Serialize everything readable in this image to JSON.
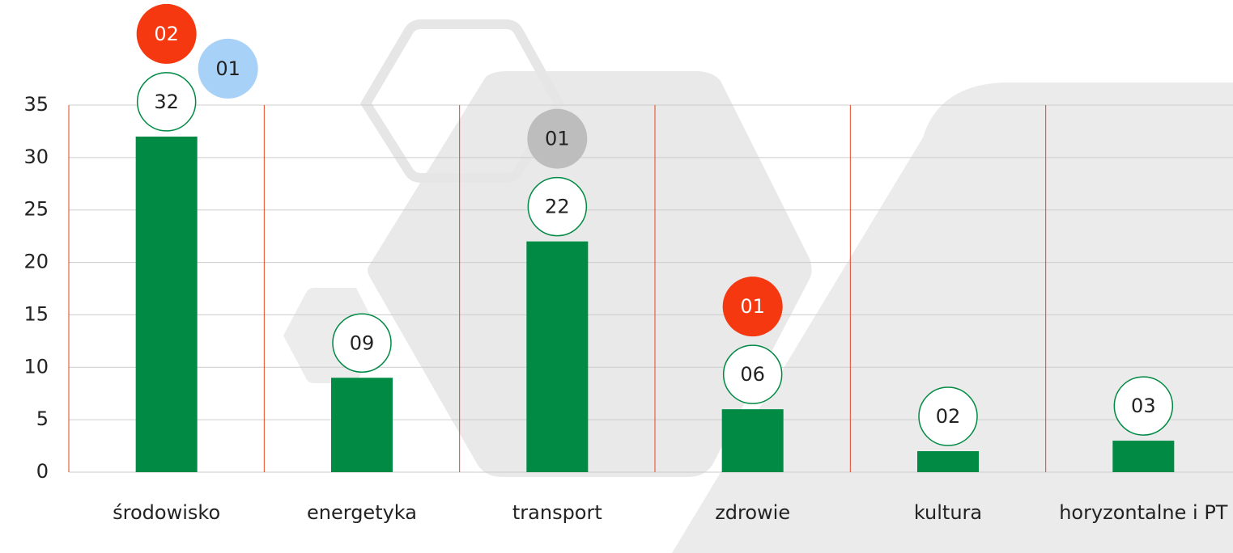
{
  "chart_data": {
    "type": "bar",
    "categories": [
      "środowisko",
      "energetyka",
      "transport",
      "zdrowie",
      "kultura",
      "horyzontalne i PT"
    ],
    "values": [
      32,
      9,
      22,
      6,
      2,
      3
    ],
    "value_labels": [
      "32",
      "09",
      "22",
      "06",
      "02",
      "03"
    ],
    "color": "#008a43",
    "ylim": [
      0,
      35
    ],
    "yticks": [
      0,
      5,
      10,
      15,
      20,
      25,
      30,
      35
    ],
    "grid": true,
    "annotations": [
      {
        "category": "środowisko",
        "text": "02",
        "color": "#f5380f",
        "text_color": "#ffffff"
      },
      {
        "category": "środowisko",
        "text": "01",
        "color": "#a8d1f8",
        "text_color": "#222222"
      },
      {
        "category": "transport",
        "text": "01",
        "color": "#bdbdbd",
        "text_color": "#222222"
      },
      {
        "category": "zdrowie",
        "text": "01",
        "color": "#f5380f",
        "text_color": "#ffffff"
      }
    ]
  }
}
